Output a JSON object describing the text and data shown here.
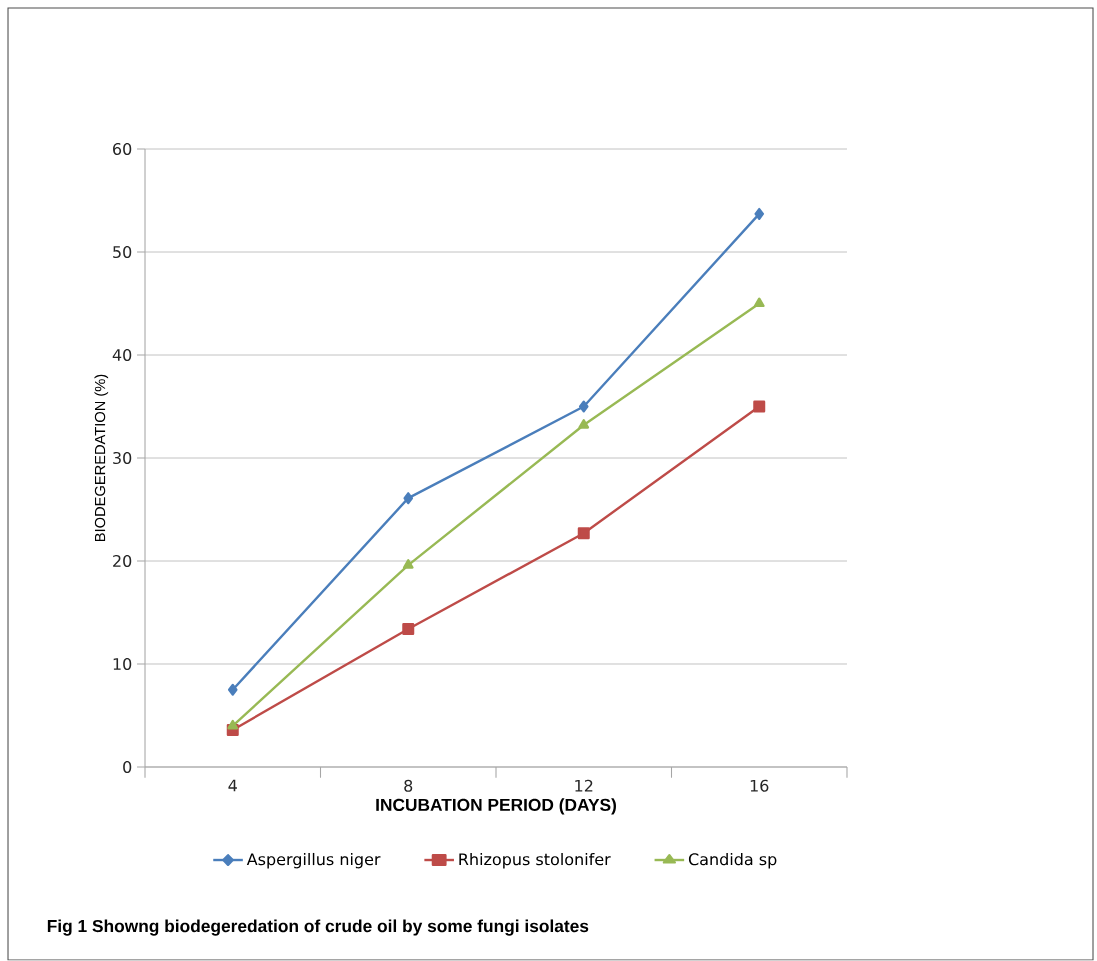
{
  "chart_data": {
    "type": "line",
    "xlabel": "INCUBATION PERIOD (DAYS)",
    "ylabel": "BIODEGEREDATION (%)",
    "categories": [
      "4",
      "8",
      "12",
      "16"
    ],
    "series": [
      {
        "name": "Aspergillus niger",
        "color": "#4a7ebb",
        "marker": "diamond",
        "values": [
          7.5,
          26.1,
          35.0,
          53.7
        ]
      },
      {
        "name": "Rhizopus stolonifer",
        "color": "#be4b48",
        "marker": "square",
        "values": [
          3.6,
          13.4,
          22.7,
          35.0
        ]
      },
      {
        "name": "Candida sp",
        "color": "#98b954",
        "marker": "triangle",
        "values": [
          4.0,
          19.6,
          33.2,
          45.0
        ]
      }
    ],
    "ylim": [
      0,
      60
    ],
    "yticks": [
      0,
      10,
      20,
      30,
      40,
      50,
      60
    ],
    "grid": "y",
    "legend": "bottom",
    "line_style": "solid",
    "annotations": [
      "Fig 1 Showng biodegeredation of crude oil by some fungi isolates"
    ]
  }
}
